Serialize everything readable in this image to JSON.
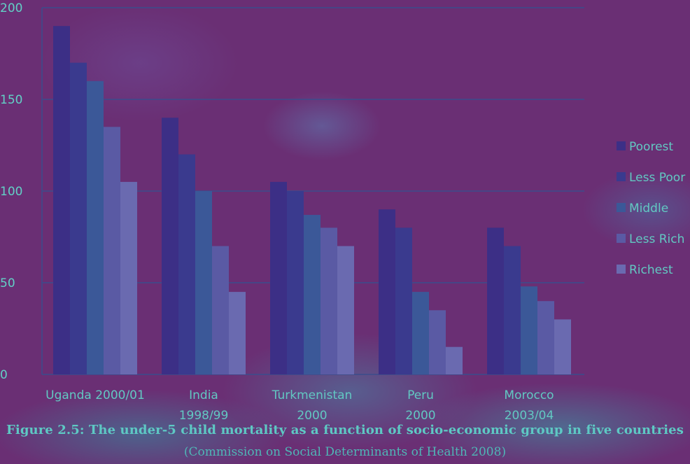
{
  "chart_data": {
    "type": "bar",
    "categories": [
      [
        "Uganda 2000/01"
      ],
      [
        "India",
        "1998/99"
      ],
      [
        "Turkmenistan",
        "2000"
      ],
      [
        "Peru",
        "2000"
      ],
      [
        "Morocco",
        "2003/04"
      ]
    ],
    "series": [
      {
        "name": "Poorest",
        "values": [
          190,
          140,
          105,
          90,
          80
        ],
        "color": "#3c2f86"
      },
      {
        "name": "Less Poor",
        "values": [
          170,
          120,
          100,
          80,
          70
        ],
        "color": "#3a3a8e"
      },
      {
        "name": "Middle",
        "values": [
          160,
          100,
          87,
          45,
          48
        ],
        "color": "#3b5898"
      },
      {
        "name": "Less Rich",
        "values": [
          135,
          70,
          80,
          35,
          40
        ],
        "color": "#5a5aa4"
      },
      {
        "name": "Richest",
        "values": [
          105,
          45,
          70,
          15,
          30
        ],
        "color": "#6a6ab0"
      }
    ],
    "ylim": [
      0,
      200
    ],
    "yticks": [
      0,
      50,
      100,
      150,
      200
    ],
    "grid": true,
    "legend": "right"
  },
  "caption": {
    "title": "Figure 2.5: The under-5 child mortality as a function of socio-economic group in five countries",
    "source": "(Commission on Social Determinants of Health 2008)"
  }
}
